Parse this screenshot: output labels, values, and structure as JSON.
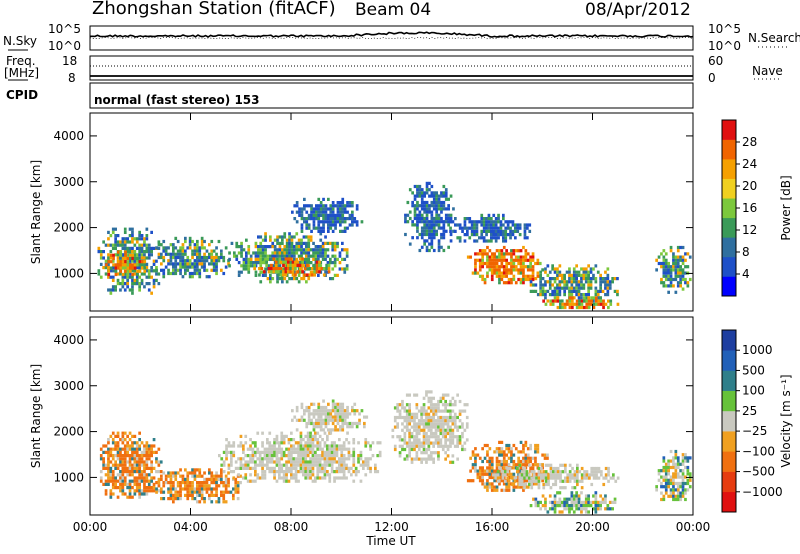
{
  "header": {
    "station": "Zhongshan Station (fitACF)",
    "beam": "Beam 04",
    "date": "08/Apr/2012"
  },
  "noise_panel": {
    "left_label": "N.Sky",
    "left_ticks": [
      "10^5",
      "10^0"
    ],
    "right_label": "N.Search",
    "right_ticks": [
      "10^5",
      "10^0"
    ]
  },
  "freq_panel": {
    "left_label_1": "Freq.",
    "left_label_2": "[MHz]",
    "left_ticks": [
      "18",
      "8"
    ],
    "right_label": "Nave",
    "right_ticks": [
      "60",
      "0"
    ]
  },
  "cpid_panel": {
    "label": "CPID",
    "mode": "normal (fast stereo) 153"
  },
  "colors": {
    "power_scale": [
      "#0000ff",
      "#1e50c8",
      "#2f6f9f",
      "#3a9a58",
      "#7cc83c",
      "#f0d020",
      "#f5a000",
      "#f06400",
      "#e01010"
    ],
    "velocity_scale": [
      "#1e3ea0",
      "#2160b8",
      "#2f7f8a",
      "#66c23a",
      "#c9c9c0",
      "#f0a020",
      "#f07010",
      "#e63c10",
      "#e01010"
    ]
  },
  "chart_data": [
    {
      "type": "heatmap",
      "title": "Power",
      "xlabel": "Time UT",
      "ylabel": "Slant Range [km]",
      "xlim": [
        "00:00",
        "24:00"
      ],
      "ylim": [
        180,
        4500
      ],
      "x_ticks": [
        "00:00",
        "04:00",
        "08:00",
        "12:00",
        "16:00",
        "20:00",
        "00:00"
      ],
      "y_ticks": [
        1000,
        2000,
        3000,
        4000
      ],
      "colorbar": {
        "label": "Power [dB]",
        "ticks": [
          "4",
          "8",
          "12",
          "16",
          "20",
          "24",
          "28"
        ],
        "range": [
          0,
          30
        ]
      },
      "regions": [
        {
          "t0": 0.3,
          "t1": 2.8,
          "r0": 550,
          "r1": 2000,
          "level": "mid"
        },
        {
          "t0": 0.5,
          "t1": 2.2,
          "r0": 950,
          "r1": 1500,
          "level": "high"
        },
        {
          "t0": 2.5,
          "t1": 5.5,
          "r0": 900,
          "r1": 1800,
          "level": "mid"
        },
        {
          "t0": 5.5,
          "t1": 10.3,
          "r0": 850,
          "r1": 1900,
          "level": "mid"
        },
        {
          "t0": 6.5,
          "t1": 9.5,
          "r0": 950,
          "r1": 1350,
          "level": "high"
        },
        {
          "t0": 8.0,
          "t1": 10.8,
          "r0": 1900,
          "r1": 2650,
          "level": "low"
        },
        {
          "t0": 12.5,
          "t1": 14.5,
          "r0": 1500,
          "r1": 3000,
          "level": "low"
        },
        {
          "t0": 15.0,
          "t1": 18.0,
          "r0": 800,
          "r1": 1600,
          "level": "high"
        },
        {
          "t0": 14.2,
          "t1": 17.5,
          "r0": 1700,
          "r1": 2300,
          "level": "low"
        },
        {
          "t0": 17.5,
          "t1": 21.0,
          "r0": 400,
          "r1": 1200,
          "level": "mid"
        },
        {
          "t0": 18.0,
          "t1": 21.0,
          "r0": 250,
          "r1": 500,
          "level": "high"
        },
        {
          "t0": 22.5,
          "t1": 23.9,
          "r0": 600,
          "r1": 1600,
          "level": "mid"
        }
      ]
    },
    {
      "type": "heatmap",
      "title": "Velocity",
      "xlabel": "Time UT",
      "ylabel": "Slant Range [km]",
      "xlim": [
        "00:00",
        "24:00"
      ],
      "ylim": [
        180,
        4500
      ],
      "x_ticks": [
        "00:00",
        "04:00",
        "08:00",
        "12:00",
        "16:00",
        "20:00",
        "00:00"
      ],
      "y_ticks": [
        1000,
        2000,
        3000,
        4000
      ],
      "colorbar": {
        "label": "Velocity [m s⁻¹]",
        "ticks": [
          "1000",
          "500",
          "100",
          "25",
          "−25",
          "−100",
          "−500",
          "−1000"
        ],
        "range": [
          -1000,
          1000
        ]
      },
      "regions": [
        {
          "t0": 0.3,
          "t1": 2.8,
          "r0": 550,
          "r1": 2000,
          "level": "neg"
        },
        {
          "t0": 2.5,
          "t1": 6.0,
          "r0": 500,
          "r1": 1200,
          "level": "neg"
        },
        {
          "t0": 5.0,
          "t1": 11.5,
          "r0": 900,
          "r1": 2000,
          "level": "zero"
        },
        {
          "t0": 8.0,
          "t1": 11.0,
          "r0": 2000,
          "r1": 2700,
          "level": "zero"
        },
        {
          "t0": 12.0,
          "t1": 15.0,
          "r0": 1300,
          "r1": 2900,
          "level": "zero"
        },
        {
          "t0": 15.0,
          "t1": 18.2,
          "r0": 700,
          "r1": 1800,
          "level": "neg"
        },
        {
          "t0": 16.0,
          "t1": 21.0,
          "r0": 800,
          "r1": 1300,
          "level": "zero"
        },
        {
          "t0": 17.5,
          "t1": 21.0,
          "r0": 250,
          "r1": 700,
          "level": "mix"
        },
        {
          "t0": 22.5,
          "t1": 23.9,
          "r0": 500,
          "r1": 1600,
          "level": "mix"
        }
      ]
    }
  ]
}
